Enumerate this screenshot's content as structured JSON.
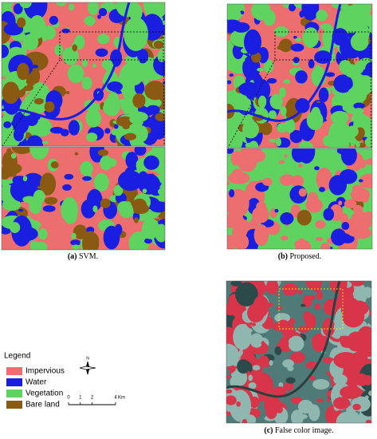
{
  "panels": [
    {
      "tag": "(a)",
      "text": "SVM."
    },
    {
      "tag": "(b)",
      "text": "Proposed."
    },
    {
      "tag": "(c)",
      "text": "False color image."
    }
  ],
  "legend": {
    "title": "Legend",
    "items": [
      {
        "name": "Impervious",
        "color": "#ec6e6e"
      },
      {
        "name": "Water",
        "color": "#1a1ee0"
      },
      {
        "name": "Vegetation",
        "color": "#5fd35f"
      },
      {
        "name": "Bare land",
        "color": "#8a5a12"
      }
    ]
  },
  "north": "N",
  "scale": {
    "ticks": [
      0,
      1,
      2,
      4
    ],
    "unit": "Km"
  }
}
